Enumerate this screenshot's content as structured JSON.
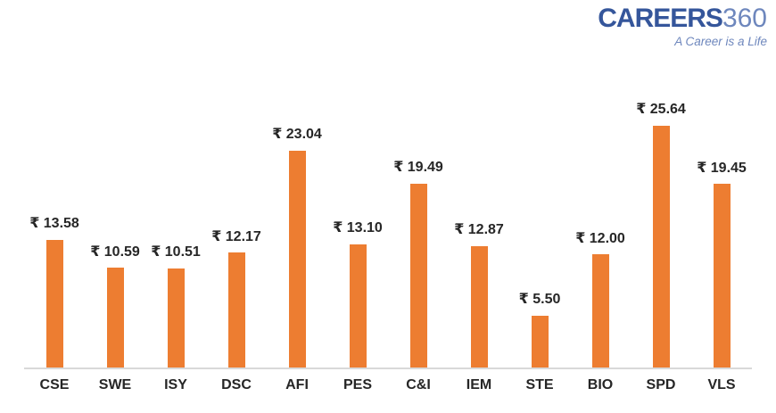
{
  "logo": {
    "brand": "CAREERS",
    "suffix": "360",
    "tagline": "A Career is a Life",
    "brand_color": "#35569B",
    "suffix_color": "#6E87BD",
    "tagline_color": "#6E87BD"
  },
  "chart_data": {
    "type": "bar",
    "title": "",
    "xlabel": "",
    "ylabel": "",
    "categories": [
      "CSE",
      "SWE",
      "ISY",
      "DSC",
      "AFI",
      "PES",
      "C&I",
      "IEM",
      "STE",
      "BIO",
      "SPD",
      "VLS"
    ],
    "values": [
      13.58,
      10.59,
      10.51,
      12.17,
      23.04,
      13.1,
      19.49,
      12.87,
      5.5,
      12.0,
      25.64,
      19.45
    ],
    "data_labels": [
      "₹ 13.58",
      "₹ 10.59",
      "₹ 10.51",
      "₹ 12.17",
      "₹ 23.04",
      "₹ 13.10",
      "₹ 19.49",
      "₹ 12.87",
      "₹ 5.50",
      "₹ 12.00",
      "₹ 25.64",
      "₹ 19.45"
    ],
    "currency_symbol": "₹",
    "ylim": [
      0,
      27
    ],
    "grid": false,
    "legend_position": "none",
    "bar_color": "#ED7D31",
    "axis_line_color": "#D9D9D9",
    "label_color": "#262626"
  }
}
